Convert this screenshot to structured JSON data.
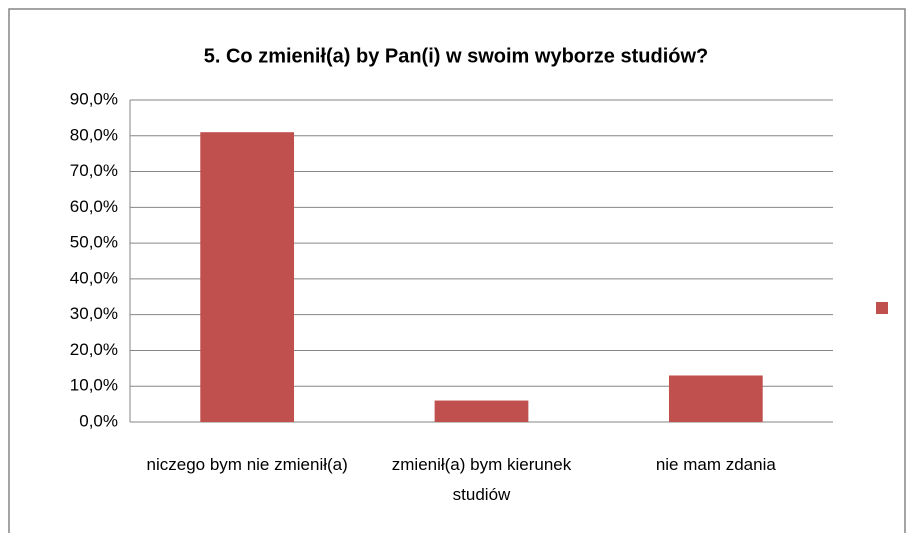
{
  "chart_data": {
    "type": "bar",
    "title": "5. Co zmienił(a) by Pan(i) w swoim wyborze studiów?",
    "categories": [
      "niczego bym nie zmienił(a)",
      "zmienił(a) bym kierunek studiów",
      "nie mam zdania"
    ],
    "values": [
      81,
      6,
      13
    ],
    "color": "#c0504d",
    "ylim": [
      0,
      90
    ],
    "yticks": [
      {
        "value": 0,
        "label": "0,0%"
      },
      {
        "value": 10,
        "label": "10,0%"
      },
      {
        "value": 20,
        "label": "20,0%"
      },
      {
        "value": 30,
        "label": "30,0%"
      },
      {
        "value": 40,
        "label": "40,0%"
      },
      {
        "value": 50,
        "label": "50,0%"
      },
      {
        "value": 60,
        "label": "60,0%"
      },
      {
        "value": 70,
        "label": "70,0%"
      },
      {
        "value": 80,
        "label": "80,0%"
      },
      {
        "value": 90,
        "label": "90,0%"
      }
    ],
    "grid": true
  }
}
